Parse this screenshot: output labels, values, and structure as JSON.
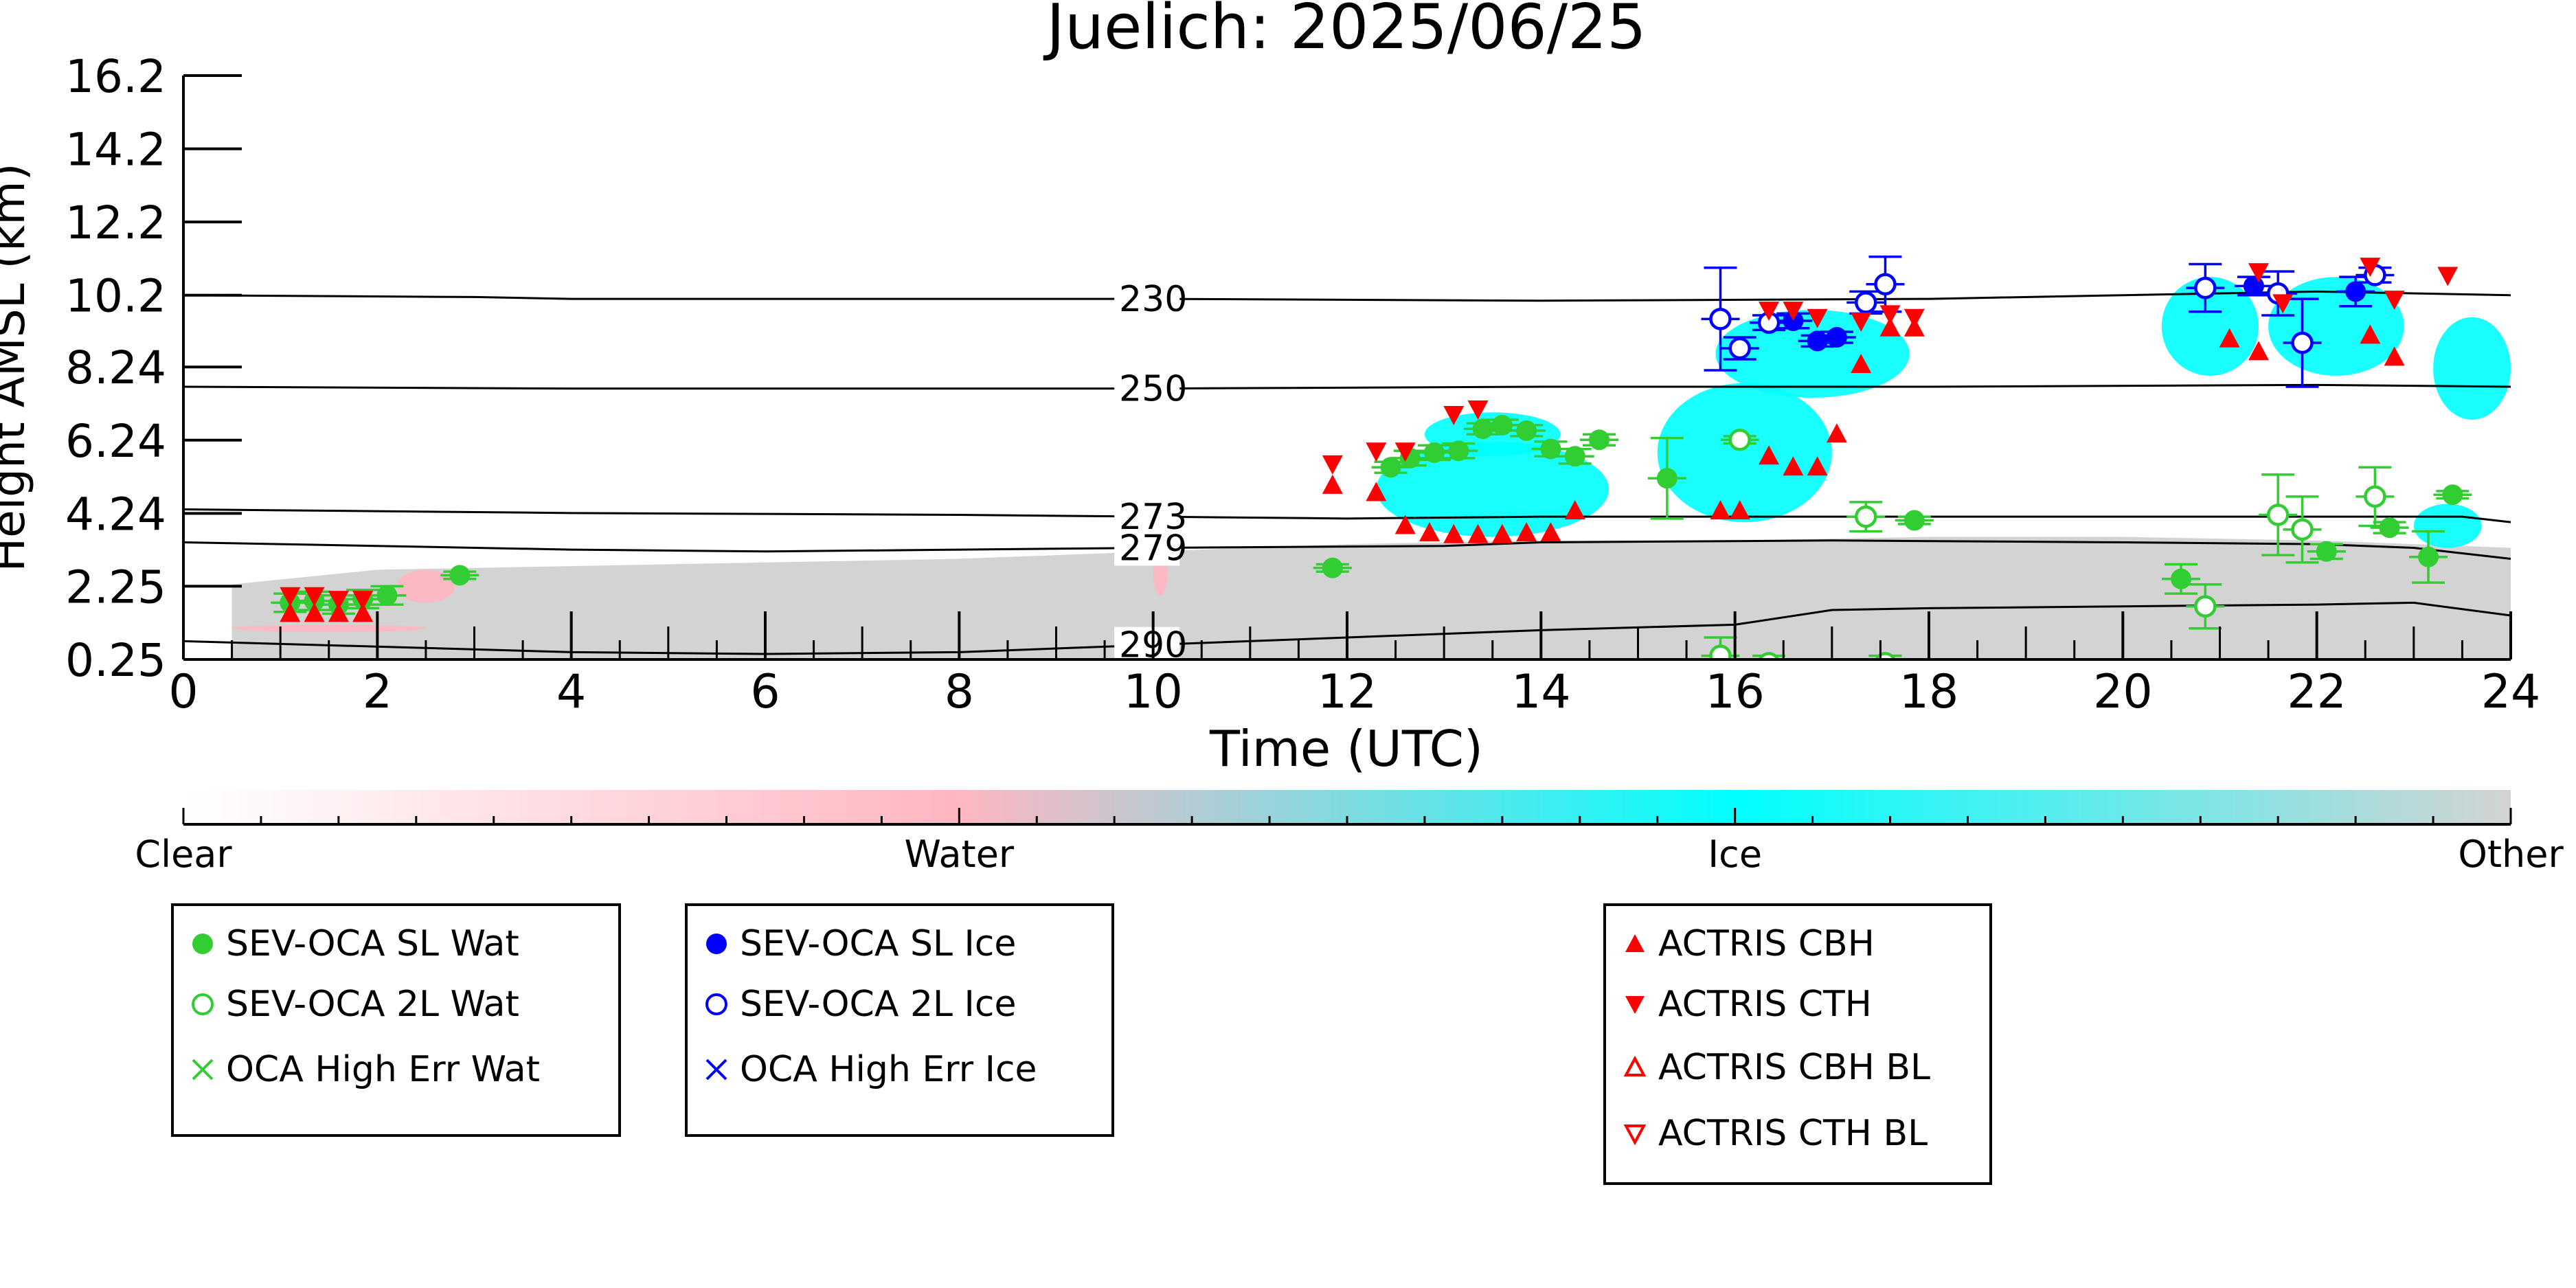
{
  "chart_data": {
    "type": "scatter",
    "title": "Juelich: 2025/06/25",
    "xlabel": "Time (UTC)",
    "ylabel": "Height AMSL (km)",
    "xlim": [
      0,
      24
    ],
    "x_ticks": [
      0,
      2,
      4,
      6,
      8,
      10,
      12,
      14,
      16,
      18,
      20,
      22,
      24
    ],
    "y_ticks": [
      "0.25",
      "2.25",
      "4.24",
      "6.24",
      "8.24",
      "10.2",
      "12.2",
      "14.2",
      "16.2"
    ],
    "y_tick_values": [
      0.25,
      2.25,
      4.24,
      6.24,
      8.24,
      10.2,
      12.2,
      14.2,
      16.2
    ],
    "ylim": [
      0.25,
      16.2
    ],
    "grid": false,
    "colorbar": {
      "labels": [
        "Clear",
        "Water",
        "Ice",
        "Other"
      ],
      "colors": [
        "#ffffff",
        "#ffb6c1",
        "#00ffff",
        "#d3d3d3"
      ]
    },
    "isotherms": [
      {
        "label": "230",
        "points": [
          [
            0,
            10.2
          ],
          [
            3,
            10.15
          ],
          [
            4,
            10.1
          ],
          [
            6,
            10.1
          ],
          [
            10,
            10.1
          ],
          [
            14,
            10.05
          ],
          [
            18,
            10.1
          ],
          [
            20,
            10.2
          ],
          [
            22,
            10.3
          ],
          [
            24,
            10.2
          ]
        ]
      },
      {
        "label": "250",
        "points": [
          [
            0,
            7.7
          ],
          [
            4,
            7.65
          ],
          [
            8,
            7.65
          ],
          [
            10,
            7.65
          ],
          [
            14,
            7.7
          ],
          [
            18,
            7.7
          ],
          [
            22,
            7.75
          ],
          [
            24,
            7.7
          ]
        ]
      },
      {
        "label": "273",
        "points": [
          [
            0,
            4.35
          ],
          [
            4,
            4.25
          ],
          [
            8,
            4.2
          ],
          [
            10,
            4.15
          ],
          [
            12,
            4.1
          ],
          [
            14,
            4.15
          ],
          [
            18,
            4.15
          ],
          [
            22,
            4.15
          ],
          [
            23.5,
            4.15
          ],
          [
            24,
            4.0
          ]
        ]
      },
      {
        "label": "279",
        "points": [
          [
            0,
            3.45
          ],
          [
            4,
            3.25
          ],
          [
            6,
            3.2
          ],
          [
            8,
            3.25
          ],
          [
            10,
            3.3
          ],
          [
            13,
            3.35
          ],
          [
            14,
            3.45
          ],
          [
            17,
            3.5
          ],
          [
            20,
            3.45
          ],
          [
            22,
            3.4
          ],
          [
            23,
            3.3
          ],
          [
            24,
            3.0
          ]
        ]
      },
      {
        "label": "290",
        "points": [
          [
            0,
            0.75
          ],
          [
            4,
            0.45
          ],
          [
            6,
            0.4
          ],
          [
            8,
            0.45
          ],
          [
            10,
            0.65
          ],
          [
            12,
            0.85
          ],
          [
            14,
            1.05
          ],
          [
            16,
            1.2
          ],
          [
            17,
            1.6
          ],
          [
            18,
            1.65
          ],
          [
            20,
            1.7
          ],
          [
            22,
            1.75
          ],
          [
            23,
            1.8
          ],
          [
            24,
            1.45
          ]
        ]
      }
    ],
    "cloudnet_regions": [
      {
        "class": "Other",
        "x0": 0.5,
        "x1": 24,
        "top": [
          [
            0.5,
            2.3
          ],
          [
            2,
            2.7
          ],
          [
            4,
            2.8
          ],
          [
            8,
            3.0
          ],
          [
            10,
            3.2
          ],
          [
            12,
            3.4
          ],
          [
            14,
            3.5
          ],
          [
            16,
            3.5
          ],
          [
            18,
            3.6
          ],
          [
            20,
            3.6
          ],
          [
            22,
            3.5
          ],
          [
            24,
            3.3
          ]
        ]
      },
      {
        "class": "Water",
        "blobs": [
          [
            0.5,
            1.0,
            2.5,
            1.2
          ],
          [
            2.2,
            1.8,
            2.8,
            2.7
          ],
          [
            10.0,
            2.0,
            10.15,
            3.2
          ]
        ]
      },
      {
        "class": "Ice",
        "blobs": [
          [
            12.3,
            3.6,
            14.7,
            6.2
          ],
          [
            12.8,
            5.8,
            14.2,
            7.0
          ],
          [
            15.2,
            4.0,
            17.0,
            7.8
          ],
          [
            15.8,
            7.4,
            17.8,
            9.8
          ],
          [
            20.4,
            8.0,
            21.4,
            10.7
          ],
          [
            21.5,
            8.0,
            22.9,
            10.7
          ],
          [
            23.2,
            6.8,
            24,
            9.6
          ],
          [
            23.0,
            3.3,
            23.7,
            4.5
          ]
        ]
      }
    ],
    "series": [
      {
        "name": "SEV-OCA SL Wat",
        "marker": "filled-circle",
        "color": "#32cd32",
        "points": [
          [
            1.1,
            1.8,
            0.25
          ],
          [
            1.35,
            1.85,
            0.25
          ],
          [
            1.6,
            1.75,
            0.25
          ],
          [
            1.85,
            1.9,
            0.25
          ],
          [
            2.1,
            2.0,
            0.25
          ],
          [
            2.85,
            2.55,
            0.1
          ],
          [
            11.85,
            2.75,
            0.1
          ],
          [
            12.45,
            5.5,
            0.15
          ],
          [
            12.65,
            5.75,
            0.2
          ],
          [
            12.9,
            5.9,
            0.2
          ],
          [
            13.15,
            5.95,
            0.2
          ],
          [
            13.4,
            6.55,
            0.15
          ],
          [
            13.6,
            6.65,
            0.15
          ],
          [
            13.85,
            6.5,
            0.15
          ],
          [
            14.1,
            6.0,
            0.2
          ],
          [
            14.35,
            5.8,
            0.2
          ],
          [
            14.6,
            6.25,
            0.15
          ],
          [
            15.3,
            5.2,
            1.1
          ],
          [
            17.85,
            4.05,
            0.1
          ],
          [
            20.6,
            2.45,
            0.4
          ],
          [
            22.1,
            3.2,
            0.2
          ],
          [
            22.75,
            3.85,
            0.15
          ],
          [
            23.15,
            3.05,
            0.7
          ],
          [
            23.4,
            4.75,
            0.1
          ]
        ]
      },
      {
        "name": "SEV-OCA 2L Wat",
        "marker": "open-circle",
        "color": "#32cd32",
        "points": [
          [
            15.85,
            0.35,
            0.5
          ],
          [
            16.05,
            6.25,
            0.1
          ],
          [
            16.35,
            0.15,
            0.2
          ],
          [
            17.35,
            4.15,
            0.4
          ],
          [
            17.55,
            0.15,
            0.2
          ],
          [
            20.85,
            1.7,
            0.6
          ],
          [
            21.6,
            4.2,
            1.1
          ],
          [
            21.85,
            3.8,
            0.9
          ],
          [
            22.6,
            4.7,
            0.8
          ]
        ]
      },
      {
        "name": "OCA High Err Wat",
        "marker": "x",
        "color": "#32cd32",
        "points": []
      },
      {
        "name": "SEV-OCA SL Ice",
        "marker": "filled-circle",
        "color": "#0000ff",
        "points": [
          [
            16.6,
            9.5,
            0.2
          ],
          [
            16.85,
            8.95,
            0.15
          ],
          [
            17.05,
            9.05,
            0.15
          ],
          [
            21.35,
            10.45,
            0.25
          ],
          [
            22.4,
            10.3,
            0.4
          ]
        ]
      },
      {
        "name": "SEV-OCA 2L Ice",
        "marker": "open-circle",
        "color": "#0000ff",
        "points": [
          [
            15.85,
            9.55,
            1.4
          ],
          [
            16.05,
            8.75,
            0.3
          ],
          [
            16.35,
            9.45,
            0.2
          ],
          [
            17.35,
            10.0,
            0.3
          ],
          [
            17.55,
            10.5,
            0.75
          ],
          [
            20.85,
            10.4,
            0.65
          ],
          [
            21.6,
            10.25,
            0.6
          ],
          [
            21.85,
            8.9,
            1.2
          ],
          [
            22.6,
            10.75,
            0.2
          ]
        ]
      },
      {
        "name": "OCA High Err Ice",
        "marker": "x",
        "color": "#0000ff",
        "points": []
      },
      {
        "name": "ACTRIS CBH",
        "marker": "triangle-up-filled",
        "color": "#ff0000",
        "points": [
          [
            1.1,
            1.5
          ],
          [
            1.35,
            1.5
          ],
          [
            1.6,
            1.5
          ],
          [
            1.85,
            1.5
          ],
          [
            11.85,
            5.0
          ],
          [
            12.3,
            4.8
          ],
          [
            12.6,
            3.9
          ],
          [
            12.85,
            3.7
          ],
          [
            13.1,
            3.65
          ],
          [
            13.35,
            3.65
          ],
          [
            13.6,
            3.65
          ],
          [
            13.85,
            3.7
          ],
          [
            14.1,
            3.7
          ],
          [
            14.35,
            4.3
          ],
          [
            15.85,
            4.3
          ],
          [
            16.05,
            4.3
          ],
          [
            16.35,
            5.8
          ],
          [
            16.6,
            5.5
          ],
          [
            16.85,
            5.5
          ],
          [
            17.05,
            6.4
          ],
          [
            17.3,
            8.3
          ],
          [
            17.6,
            9.3
          ],
          [
            17.85,
            9.3
          ],
          [
            21.1,
            9.0
          ],
          [
            21.4,
            8.65
          ],
          [
            22.55,
            9.1
          ],
          [
            22.8,
            8.5
          ]
        ]
      },
      {
        "name": "ACTRIS CTH",
        "marker": "triangle-down-filled",
        "color": "#ff0000",
        "points": [
          [
            1.1,
            2.0
          ],
          [
            1.35,
            2.0
          ],
          [
            1.6,
            1.9
          ],
          [
            1.85,
            1.9
          ],
          [
            11.85,
            5.6
          ],
          [
            12.3,
            5.95
          ],
          [
            12.6,
            5.95
          ],
          [
            13.1,
            6.95
          ],
          [
            13.35,
            7.1
          ],
          [
            16.35,
            9.8
          ],
          [
            16.6,
            9.8
          ],
          [
            16.85,
            9.6
          ],
          [
            17.3,
            9.5
          ],
          [
            17.6,
            9.7
          ],
          [
            17.85,
            9.6
          ],
          [
            21.4,
            10.85
          ],
          [
            21.65,
            10.0
          ],
          [
            22.55,
            11.0
          ],
          [
            22.8,
            10.1
          ],
          [
            23.35,
            10.75
          ]
        ]
      },
      {
        "name": "ACTRIS CBH BL",
        "marker": "triangle-up-open",
        "color": "#ff0000",
        "points": []
      },
      {
        "name": "ACTRIS CTH BL",
        "marker": "triangle-down-open",
        "color": "#ff0000",
        "points": []
      }
    ]
  },
  "legends": [
    {
      "items": [
        {
          "label": "SEV-OCA SL Wat",
          "icon": "filled-circle",
          "color": "#32cd32"
        },
        {
          "label": "SEV-OCA 2L Wat",
          "icon": "open-circle",
          "color": "#32cd32"
        },
        {
          "label": "OCA High Err Wat",
          "icon": "x",
          "color": "#32cd32"
        }
      ]
    },
    {
      "items": [
        {
          "label": "SEV-OCA SL Ice",
          "icon": "filled-circle",
          "color": "#0000ff"
        },
        {
          "label": "SEV-OCA 2L Ice",
          "icon": "open-circle",
          "color": "#0000ff"
        },
        {
          "label": "OCA High Err Ice",
          "icon": "x",
          "color": "#0000ff"
        }
      ]
    },
    {
      "items": [
        {
          "label": "ACTRIS CBH",
          "icon": "triangle-up-filled",
          "color": "#ff0000"
        },
        {
          "label": "ACTRIS CTH",
          "icon": "triangle-down-filled",
          "color": "#ff0000"
        },
        {
          "label": "ACTRIS CBH BL",
          "icon": "triangle-up-open",
          "color": "#ff0000"
        },
        {
          "label": "ACTRIS CTH BL",
          "icon": "triangle-down-open",
          "color": "#ff0000"
        }
      ]
    }
  ]
}
